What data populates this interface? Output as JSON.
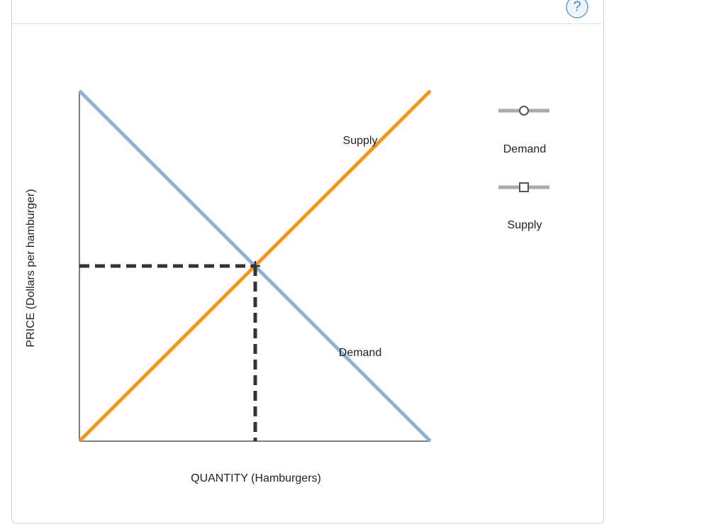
{
  "help": "?",
  "graph": {
    "y_axis_label": "PRICE (Dollars per hamburger)",
    "x_axis_label": "QUANTITY (Hamburgers)",
    "curve_labels": [
      "Supply",
      "Demand"
    ]
  },
  "palette": {
    "items": [
      "Demand",
      "Supply"
    ]
  }
}
